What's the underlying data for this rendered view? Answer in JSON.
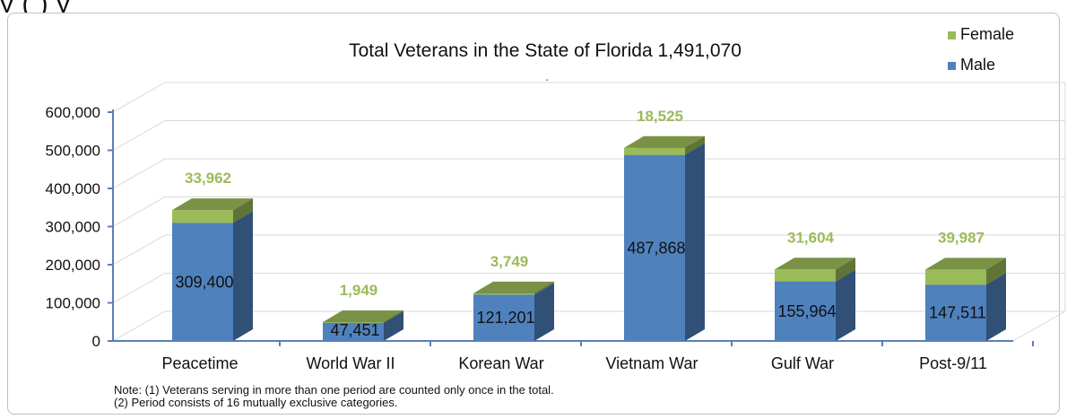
{
  "header_text": "y                                                                                                                  (      )          y",
  "chart_data": {
    "type": "bar",
    "stacked": true,
    "three_d": true,
    "title": "Total Veterans in the State of Florida 1,491,070",
    "title_mark": "-",
    "categories": [
      "Peacetime",
      "World War II",
      "Korean War",
      "Vietnam War",
      "Gulf War",
      "Post-9/11"
    ],
    "series": [
      {
        "name": "Male",
        "values": [
          309400,
          47451,
          121201,
          487868,
          155964,
          147511
        ],
        "labels": [
          "309,400",
          "47,451",
          "121,201",
          "487,868",
          "155,964",
          "147,511"
        ]
      },
      {
        "name": "Female",
        "values": [
          33962,
          1949,
          3749,
          18525,
          31604,
          39987
        ],
        "labels": [
          "33,962",
          "1,949",
          "3,749",
          "18,525",
          "31,604",
          "39,987"
        ]
      }
    ],
    "ylim": [
      0,
      600000
    ],
    "yticks": [
      0,
      100000,
      200000,
      300000,
      400000,
      500000,
      600000
    ],
    "ytick_labels": [
      "0",
      "100,000",
      "200,000",
      "300,000",
      "400,000",
      "500,000",
      "600,000"
    ],
    "legend": [
      "Female",
      "Male"
    ],
    "legend_position": "top-right",
    "grid": true,
    "colors": {
      "Male": "#4f81bd",
      "Female": "#9bbb59",
      "female_label": "#9bbb59"
    }
  },
  "note_lines": [
    "Note: (1) Veterans serving in more than one period are counted only once in the total.",
    "(2) Period consists of 16 mutually exclusive categories."
  ]
}
